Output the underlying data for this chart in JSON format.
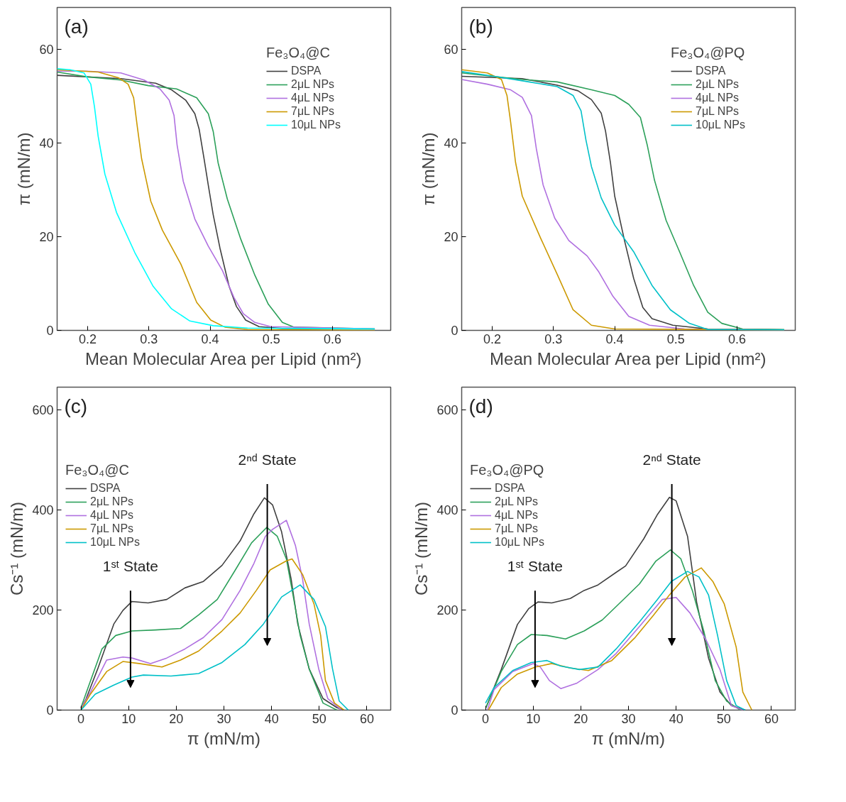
{
  "chart_data": [
    {
      "type": "line",
      "title": "(a)",
      "xlabel": "Mean Molecular Area per Lipid (nm²)",
      "ylabel": "π (mN/m)",
      "legend_title": "Fe₃O₄@C",
      "legend": "top right",
      "xlim": [
        0.15,
        0.695
      ],
      "ylim": [
        0,
        69
      ],
      "xticks": [
        0.2,
        0.3,
        0.4,
        0.5,
        0.6
      ],
      "yticks": [
        0,
        20,
        40,
        60
      ],
      "series": [
        {
          "name": "DSPA",
          "color": "#404040",
          "x": [
            0.15,
            0.254,
            0.311,
            0.337,
            0.36,
            0.375,
            0.382,
            0.39,
            0.397,
            0.405,
            0.416,
            0.431,
            0.443,
            0.458,
            0.48,
            0.518,
            0.669
          ],
          "values": [
            54.5,
            53.8,
            52.8,
            51.4,
            49.2,
            46.3,
            43,
            36.7,
            31,
            24.7,
            17.6,
            9.4,
            5.1,
            2.2,
            0.8,
            0.4,
            0.3
          ]
        },
        {
          "name": "2μL NPs",
          "color": "#2ca05a",
          "x": [
            0.15,
            0.198,
            0.254,
            0.299,
            0.345,
            0.378,
            0.397,
            0.405,
            0.413,
            0.428,
            0.45,
            0.473,
            0.495,
            0.518,
            0.537,
            0.669
          ],
          "values": [
            55.2,
            54.2,
            53.5,
            52.3,
            51.6,
            49.7,
            46.3,
            42.5,
            35.8,
            28.1,
            19.5,
            11.8,
            5.6,
            1.7,
            0.7,
            0.3
          ]
        },
        {
          "name": "4μL NPs",
          "color": "#b070e0",
          "x": [
            0.15,
            0.198,
            0.254,
            0.292,
            0.318,
            0.333,
            0.341,
            0.346,
            0.356,
            0.375,
            0.397,
            0.42,
            0.439,
            0.454,
            0.473,
            0.499,
            0.669
          ],
          "values": [
            55.4,
            55.4,
            55,
            53.5,
            51.6,
            49.2,
            45.9,
            39.6,
            31.9,
            23.8,
            18,
            12.8,
            7,
            3.6,
            1.7,
            0.8,
            0.3
          ]
        },
        {
          "name": "7μL NPs",
          "color": "#cc9900",
          "x": [
            0.15,
            0.217,
            0.25,
            0.266,
            0.275,
            0.281,
            0.288,
            0.303,
            0.322,
            0.352,
            0.378,
            0.401,
            0.424,
            0.461,
            0.669
          ],
          "values": [
            55.7,
            55.2,
            54,
            52.6,
            49.7,
            43.5,
            36.7,
            27.6,
            21.4,
            14.2,
            6,
            2.2,
            0.7,
            0.2,
            0
          ]
        },
        {
          "name": "10μL NPs",
          "color": "#00ffff",
          "x": [
            0.15,
            0.171,
            0.194,
            0.205,
            0.211,
            0.217,
            0.228,
            0.247,
            0.277,
            0.307,
            0.337,
            0.367,
            0.405,
            0.461,
            0.669
          ],
          "values": [
            55.9,
            55.7,
            55,
            52.6,
            47.8,
            41.5,
            33.4,
            25.2,
            16.6,
            9.4,
            4.6,
            2,
            1,
            0.5,
            0.3
          ]
        }
      ]
    },
    {
      "type": "line",
      "title": "(b)",
      "xlabel": "Mean Molecular Area per Lipid (nm²)",
      "ylabel": "π (mN/m)",
      "legend_title": "Fe₃O₄@PQ",
      "legend": "top right",
      "xlim": [
        0.15,
        0.695
      ],
      "ylim": [
        0,
        69
      ],
      "xticks": [
        0.2,
        0.3,
        0.4,
        0.5,
        0.6
      ],
      "yticks": [
        0,
        20,
        40,
        60
      ],
      "series": [
        {
          "name": "DSPA",
          "color": "#404040",
          "x": [
            0.15,
            0.249,
            0.306,
            0.34,
            0.362,
            0.378,
            0.385,
            0.393,
            0.4,
            0.416,
            0.431,
            0.446,
            0.461,
            0.495,
            0.552,
            0.677
          ],
          "values": [
            54.3,
            53.8,
            52.4,
            51.2,
            49.3,
            46.4,
            42.6,
            35.9,
            28.7,
            19.2,
            11.1,
            4.9,
            2.5,
            1.1,
            0.3,
            0.1
          ]
        },
        {
          "name": "2μL NPs",
          "color": "#2ca05a",
          "x": [
            0.15,
            0.249,
            0.306,
            0.362,
            0.4,
            0.423,
            0.442,
            0.453,
            0.465,
            0.484,
            0.506,
            0.529,
            0.552,
            0.575,
            0.609,
            0.677
          ],
          "values": [
            55,
            53.6,
            53.1,
            51.4,
            50.2,
            48.3,
            45.5,
            39.7,
            32.1,
            23.5,
            16.8,
            9.6,
            3.9,
            1.5,
            0.3,
            0.2
          ]
        },
        {
          "name": "4μL NPs",
          "color": "#b070e0",
          "x": [
            0.15,
            0.192,
            0.23,
            0.249,
            0.264,
            0.272,
            0.283,
            0.302,
            0.325,
            0.355,
            0.374,
            0.397,
            0.423,
            0.457,
            0.514,
            0.677
          ],
          "values": [
            53.6,
            52.6,
            51.4,
            49.8,
            45.9,
            38.8,
            31.1,
            24,
            19.2,
            15.9,
            12.5,
            7.3,
            3,
            1.1,
            0.3,
            0.1
          ]
        },
        {
          "name": "7μL NPs",
          "color": "#cc9900",
          "x": [
            0.15,
            0.192,
            0.215,
            0.224,
            0.23,
            0.238,
            0.249,
            0.279,
            0.306,
            0.332,
            0.362,
            0.4,
            0.677
          ],
          "values": [
            55.7,
            55,
            53.6,
            50.2,
            44.5,
            35.9,
            28.7,
            19.7,
            12,
            4.4,
            1.1,
            0.3,
            0.1
          ]
        },
        {
          "name": "10μL NPs",
          "color": "#00c0c8",
          "x": [
            0.15,
            0.203,
            0.26,
            0.306,
            0.332,
            0.345,
            0.353,
            0.362,
            0.378,
            0.4,
            0.431,
            0.461,
            0.491,
            0.522,
            0.552,
            0.677
          ],
          "values": [
            55.3,
            54.3,
            53.1,
            52.1,
            50.2,
            46.9,
            40.7,
            35,
            28.3,
            22.5,
            16.8,
            9.6,
            4.4,
            1.5,
            0.2,
            0.1
          ]
        }
      ]
    },
    {
      "type": "line",
      "title": "(c)",
      "xlabel": "π (mN/m)",
      "ylabel": "Cs⁻¹ (mN/m)",
      "legend_title": "Fe₃O₄@C",
      "legend": "top left",
      "xlim": [
        -5,
        65
      ],
      "ylim": [
        0,
        645
      ],
      "xticks": [
        0,
        10,
        20,
        30,
        40,
        50,
        60
      ],
      "yticks": [
        0,
        200,
        400,
        600
      ],
      "annotations": [
        "1ˢᵗ State",
        "2ⁿᵈ State"
      ],
      "series": [
        {
          "name": "DSPA",
          "color": "#404040",
          "x": [
            0,
            1.1,
            3.5,
            6.9,
            8.8,
            10.7,
            14.1,
            18,
            21.8,
            25.7,
            29.6,
            33.4,
            36.3,
            38.5,
            40.2,
            42.1,
            44.1,
            45.5,
            47.9,
            50.8,
            53.7,
            55.2
          ],
          "values": [
            3,
            23,
            82,
            172,
            199,
            217,
            214,
            221,
            244,
            257,
            289,
            338,
            392,
            424,
            410,
            356,
            262,
            172,
            82,
            23,
            5,
            0
          ]
        },
        {
          "name": "2μL NPs",
          "color": "#2ca05a",
          "x": [
            0,
            1.5,
            4.4,
            7.3,
            10.7,
            15.6,
            20.9,
            24.7,
            28.6,
            32.4,
            35.8,
            39,
            41.2,
            43.1,
            44.5,
            46,
            47.9,
            50.8,
            53.7
          ],
          "values": [
            5,
            45,
            122,
            149,
            158,
            160,
            163,
            190,
            221,
            280,
            334,
            365,
            347,
            302,
            230,
            149,
            82,
            14,
            0
          ]
        },
        {
          "name": "4μL NPs",
          "color": "#b070e0",
          "x": [
            0,
            2,
            5.4,
            8.8,
            10.7,
            14.6,
            18,
            21.8,
            25.7,
            29.6,
            33.4,
            36.3,
            38.7,
            40.2,
            43.1,
            45,
            46.5,
            47.9,
            49.9,
            51.8,
            54.7
          ],
          "values": [
            3,
            36,
            100,
            106,
            104,
            93,
            104,
            122,
            145,
            181,
            239,
            293,
            347,
            361,
            379,
            329,
            262,
            172,
            82,
            23,
            0
          ]
        },
        {
          "name": "7μL NPs",
          "color": "#cc9900",
          "x": [
            0,
            2,
            5.4,
            8.8,
            12.2,
            17,
            20.9,
            24.7,
            29.6,
            33.4,
            36.8,
            39.7,
            43.1,
            44.3,
            46.5,
            48.9,
            50.3,
            51.3,
            53.2,
            55.2
          ],
          "values": [
            0,
            32,
            77,
            97,
            93,
            86,
            100,
            118,
            158,
            194,
            239,
            280,
            298,
            302,
            271,
            212,
            149,
            59,
            14,
            0
          ]
        },
        {
          "name": "10μL NPs",
          "color": "#00c0c8",
          "x": [
            0,
            3,
            6.9,
            10.7,
            13.1,
            18.9,
            24.7,
            29.6,
            34.4,
            38.3,
            42.1,
            46,
            48.9,
            51.3,
            52.8,
            54.2,
            56.1
          ],
          "values": [
            0,
            32,
            50,
            66,
            70,
            68,
            73,
            95,
            131,
            172,
            226,
            250,
            221,
            167,
            82,
            18,
            0
          ]
        }
      ]
    },
    {
      "type": "line",
      "title": "(d)",
      "xlabel": "π (mN/m)",
      "ylabel": "Cs⁻¹ (mN/m)",
      "legend_title": "Fe₃O₄@PQ",
      "legend": "top left",
      "xlim": [
        -5,
        65
      ],
      "ylim": [
        0,
        645
      ],
      "xticks": [
        0,
        10,
        20,
        30,
        40,
        50,
        60
      ],
      "yticks": [
        0,
        200,
        400,
        600
      ],
      "annotations": [
        "1ˢᵗ State",
        "2ⁿᵈ State"
      ],
      "series": [
        {
          "name": "DSPA",
          "color": "#404040",
          "x": [
            0.1,
            3.3,
            6.7,
            9.1,
            11,
            13.9,
            17.8,
            20.7,
            23.6,
            27.4,
            29.4,
            33.2,
            36.1,
            38.6,
            40,
            42.4,
            44.3,
            46.8,
            49.2,
            51.6,
            54.5
          ],
          "values": [
            5,
            81,
            171,
            203,
            216,
            214,
            223,
            239,
            250,
            275,
            288,
            342,
            391,
            425,
            418,
            347,
            216,
            104,
            36,
            9,
            0
          ]
        },
        {
          "name": "2μL NPs",
          "color": "#2ca05a",
          "x": [
            0.1,
            3.3,
            6.7,
            9.6,
            12.9,
            16.8,
            20.7,
            24.5,
            29.4,
            32.3,
            35.7,
            38.8,
            41,
            43.4,
            45.8,
            48.2,
            50.6,
            53.5
          ],
          "values": [
            5,
            77,
            131,
            151,
            149,
            142,
            158,
            180,
            225,
            252,
            297,
            320,
            302,
            239,
            158,
            59,
            18,
            0
          ]
        },
        {
          "name": "4μL NPs",
          "color": "#b070e0",
          "x": [
            0.4,
            1.8,
            5.7,
            10,
            11.5,
            13.4,
            15.8,
            19.2,
            23.6,
            27.4,
            32.3,
            37.1,
            40,
            42.9,
            46.3,
            49.2,
            51.6,
            54
          ],
          "values": [
            0,
            41,
            77,
            93,
            86,
            59,
            43,
            54,
            81,
            113,
            167,
            221,
            225,
            194,
            140,
            81,
            9,
            0
          ]
        },
        {
          "name": "7μL NPs",
          "color": "#cc9900",
          "x": [
            0.6,
            3.3,
            6.7,
            10.5,
            13.9,
            17.8,
            21.6,
            26.5,
            31.3,
            35.2,
            38.6,
            41.9,
            45.3,
            47.7,
            50.1,
            52.6,
            54,
            55.9
          ],
          "values": [
            0,
            45,
            72,
            86,
            93,
            84,
            79,
            99,
            144,
            189,
            230,
            266,
            284,
            257,
            212,
            126,
            36,
            0
          ]
        },
        {
          "name": "10μL NPs",
          "color": "#00c0c8",
          "x": [
            0,
            1.8,
            5.7,
            9.6,
            12.9,
            15.8,
            19.7,
            23.6,
            27.4,
            32.3,
            36.1,
            39,
            42.4,
            44.8,
            46.8,
            48.7,
            50.6,
            52.6,
            54.5
          ],
          "values": [
            14,
            45,
            79,
            95,
            99,
            88,
            81,
            86,
            122,
            176,
            221,
            257,
            277,
            266,
            230,
            149,
            59,
            9,
            0
          ]
        }
      ]
    }
  ]
}
